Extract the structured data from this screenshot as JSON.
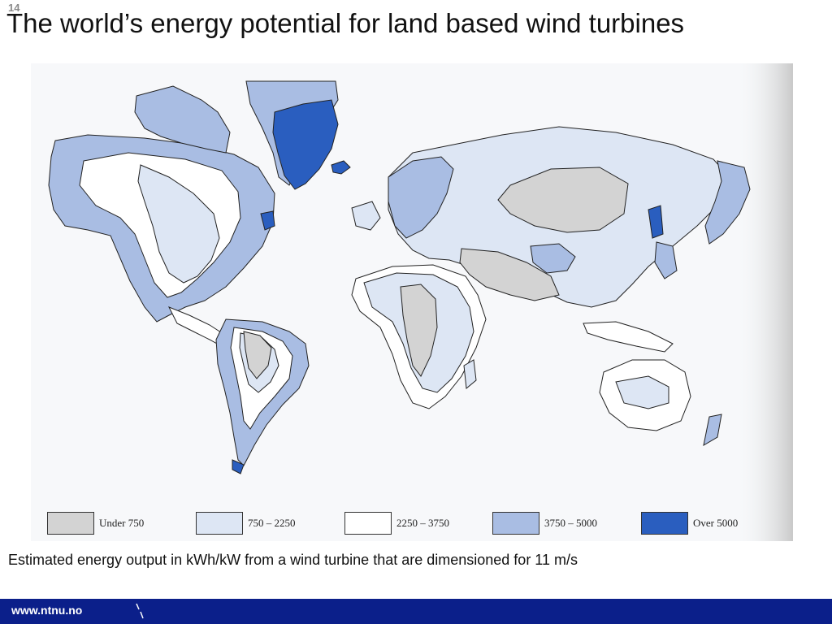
{
  "slide": {
    "number": "14"
  },
  "title": "The world’s energy potential for land based wind turbines",
  "map": {
    "legend": [
      {
        "label": "Under 750",
        "color": "#d3d3d3"
      },
      {
        "label": "750 – 2250",
        "color": "#dde6f4"
      },
      {
        "label": "2250 – 3750",
        "color": "#ffffff"
      },
      {
        "label": "3750 – 5000",
        "color": "#a9bde3"
      },
      {
        "label": "Over 5000",
        "color": "#2a5ebf"
      }
    ]
  },
  "caption": "Estimated energy output in kWh/kW from a wind turbine that are dimensioned  for 11 m/s",
  "footer": {
    "url": "www.ntnu.no",
    "bar_color": "#0b1f8a"
  }
}
